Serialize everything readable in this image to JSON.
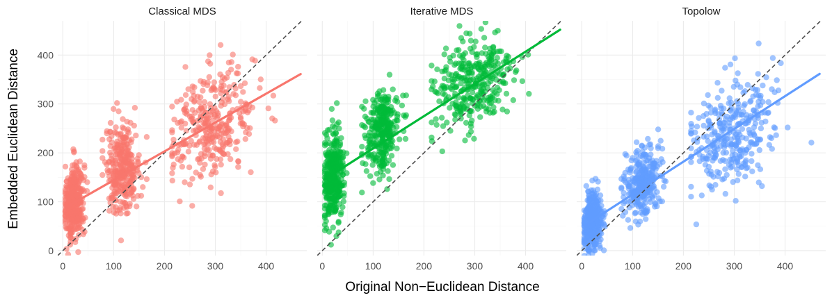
{
  "chart_data": {
    "type": "scatter",
    "xlabel": "Original Non−Euclidean Distance",
    "ylabel": "Embedded Euclidean Distance",
    "xlim": [
      -10,
      480
    ],
    "ylim": [
      -10,
      470
    ],
    "x_ticks": [
      0,
      100,
      200,
      300,
      400
    ],
    "y_ticks": [
      0,
      100,
      200,
      300,
      400
    ],
    "grid": true,
    "reference_line": {
      "style": "dashed",
      "color": "#4d4d4d",
      "slope": 1,
      "intercept": 0
    },
    "clusters": [
      {
        "x_center": 22,
        "x_sd": 10,
        "x_min": 5,
        "x_max": 48,
        "n": 360
      },
      {
        "x_center": 118,
        "x_sd": 17,
        "x_min": 78,
        "x_max": 165,
        "n": 310
      },
      {
        "x_center": 295,
        "x_sd": 42,
        "x_min": 215,
        "x_max": 470,
        "n": 330
      }
    ],
    "panels": [
      {
        "title": "Classical MDS",
        "color": "#F8766D",
        "fit": {
          "intercept": 85,
          "slope": 0.59
        },
        "cluster_y": [
          {
            "mean": 100,
            "sd": 40
          },
          {
            "mean": 170,
            "sd": 45
          },
          {
            "mean": 260,
            "sd": 55
          }
        ]
      },
      {
        "title": "Iterative MDS",
        "color": "#00BA38",
        "fit": {
          "intercept": 143,
          "slope": 0.66
        },
        "cluster_y": [
          {
            "mean": 150,
            "sd": 45
          },
          {
            "mean": 245,
            "sd": 40
          },
          {
            "mean": 340,
            "sd": 50
          }
        ]
      },
      {
        "title": "Topolow",
        "color": "#619CFF",
        "fit": {
          "intercept": 48,
          "slope": 0.67
        },
        "cluster_y": [
          {
            "mean": 60,
            "sd": 30
          },
          {
            "mean": 140,
            "sd": 35
          },
          {
            "mean": 240,
            "sd": 55
          }
        ]
      }
    ]
  }
}
